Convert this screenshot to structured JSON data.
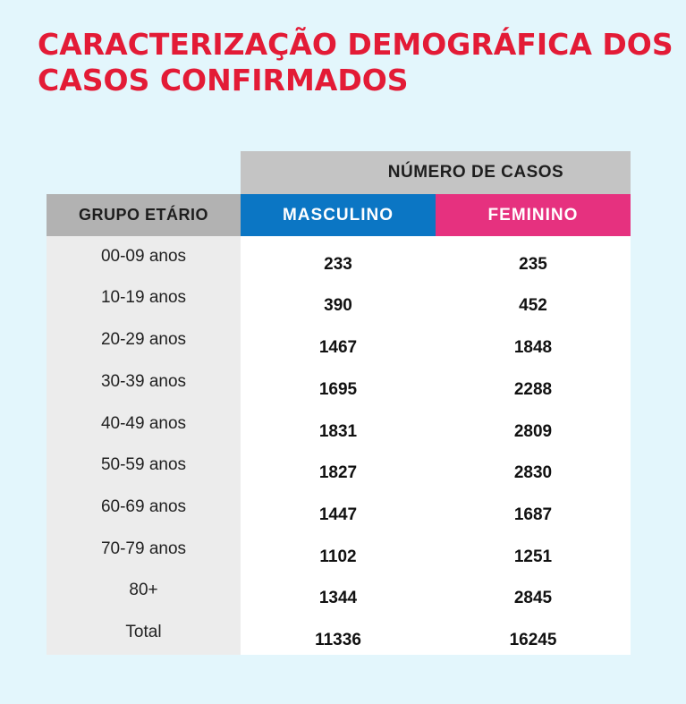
{
  "title": {
    "line1": "CARACTERIZAÇÃO DEMOGRÁFICA DOS",
    "line2": "CASOS CONFIRMADOS"
  },
  "table": {
    "header_group": "NÚMERO DE CASOS",
    "col_age": "GRUPO ETÁRIO",
    "col_male": "MASCULINO",
    "col_female": "FEMININO",
    "rows": [
      {
        "age": "00-09 anos",
        "male": "233",
        "female": "235"
      },
      {
        "age": "10-19 anos",
        "male": "390",
        "female": "452"
      },
      {
        "age": "20-29 anos",
        "male": "1467",
        "female": "1848"
      },
      {
        "age": "30-39 anos",
        "male": "1695",
        "female": "2288"
      },
      {
        "age": "40-49 anos",
        "male": "1831",
        "female": "2809"
      },
      {
        "age": "50-59 anos",
        "male": "1827",
        "female": "2830"
      },
      {
        "age": "60-69 anos",
        "male": "1447",
        "female": "1687"
      },
      {
        "age": "70-79 anos",
        "male": "1102",
        "female": "1251"
      },
      {
        "age": "80+",
        "male": "1344",
        "female": "2845"
      },
      {
        "age": "Total",
        "male": "11336",
        "female": "16245"
      }
    ]
  },
  "colors": {
    "background": "#e3f6fc",
    "title": "#e31b36",
    "male": "#0b76c4",
    "female": "#e6317f",
    "header_gray": "#c4c4c4"
  }
}
